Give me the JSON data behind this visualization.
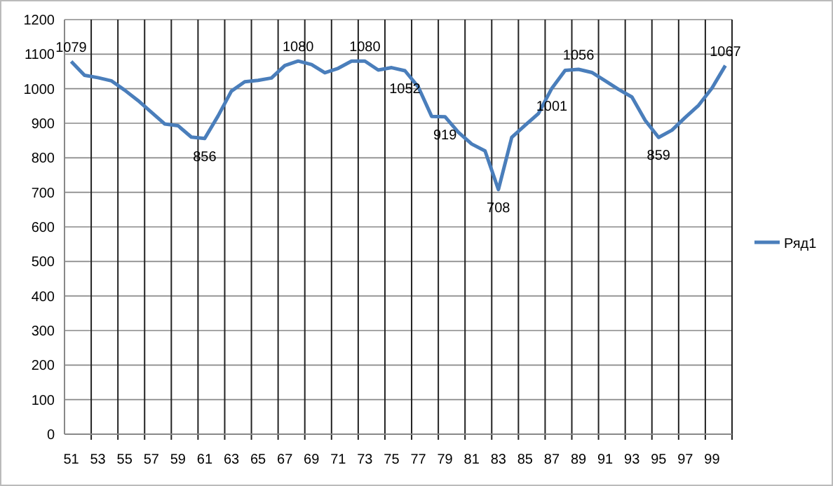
{
  "chart_data": {
    "type": "line",
    "categories": [
      "51",
      null,
      "53",
      null,
      "55",
      null,
      "57",
      null,
      "59",
      null,
      "61",
      null,
      "63",
      null,
      "65",
      null,
      "67",
      null,
      "69",
      null,
      "71",
      null,
      "73",
      null,
      "75",
      null,
      "77",
      null,
      "79",
      null,
      "81",
      null,
      "83",
      null,
      "85",
      null,
      "87",
      null,
      "89",
      null,
      "91",
      null,
      "93",
      null,
      "95",
      null,
      "97",
      null,
      "99",
      null
    ],
    "series": [
      {
        "name": "Ряд1",
        "color": "#4a7ebb",
        "values": [
          1079,
          1039,
          1032,
          1023,
          996,
          966,
          932,
          898,
          893,
          860,
          856,
          921,
          993,
          1020,
          1024,
          1031,
          1067,
          1080,
          1070,
          1046,
          1059,
          1080,
          1080,
          1054,
          1061,
          1052,
          1005,
          920,
          919,
          874,
          840,
          820,
          708,
          859,
          894,
          928,
          1001,
          1053,
          1056,
          1047,
          1023,
          998,
          976,
          908,
          859,
          880,
          917,
          952,
          1002,
          1067
        ],
        "value_labels": [
          "1079",
          null,
          null,
          null,
          null,
          null,
          null,
          null,
          null,
          null,
          "856",
          null,
          null,
          null,
          null,
          null,
          null,
          "1080",
          null,
          null,
          null,
          null,
          "1080",
          null,
          null,
          "1052",
          null,
          null,
          "919",
          null,
          null,
          null,
          "708",
          null,
          null,
          null,
          "1001",
          null,
          "1056",
          null,
          null,
          null,
          null,
          null,
          "859",
          null,
          null,
          null,
          null,
          "1067"
        ]
      }
    ],
    "ylim": [
      0,
      1200
    ],
    "yticks": [
      0,
      100,
      200,
      300,
      400,
      500,
      600,
      700,
      800,
      900,
      1000,
      1100,
      1200
    ],
    "grid": true,
    "legend": "right",
    "marker": "none",
    "line_style": "solid"
  }
}
